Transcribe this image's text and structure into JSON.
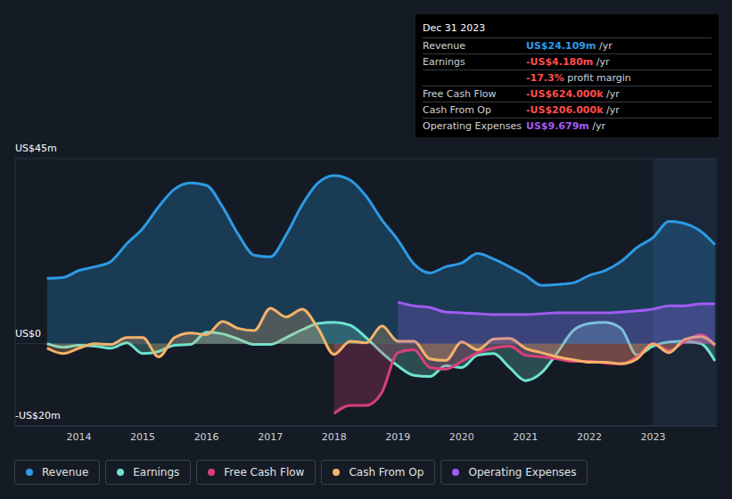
{
  "chart_data": {
    "type": "area",
    "grid": true,
    "x": [
      2013.5,
      2013.75,
      2014,
      2014.25,
      2014.5,
      2014.75,
      2015,
      2015.25,
      2015.5,
      2015.75,
      2016,
      2016.25,
      2016.5,
      2016.75,
      2017,
      2017.25,
      2017.5,
      2017.75,
      2018,
      2018.25,
      2018.5,
      2018.75,
      2019,
      2019.25,
      2019.5,
      2019.75,
      2020,
      2020.25,
      2020.5,
      2020.75,
      2021,
      2021.25,
      2021.5,
      2021.75,
      2022,
      2022.25,
      2022.5,
      2022.75,
      2023,
      2023.25,
      2023.5,
      2023.75,
      2023.97
    ],
    "xlim": [
      2013,
      2024
    ],
    "xticks": [
      2014,
      2015,
      2016,
      2017,
      2018,
      2019,
      2020,
      2021,
      2022,
      2023
    ],
    "ylim": [
      -20,
      45
    ],
    "yticks": [
      {
        "value": 45,
        "label": "US$45m"
      },
      {
        "value": 0,
        "label": "US$0"
      },
      {
        "value": -20,
        "label": "-US$20m"
      }
    ],
    "shaded_x": [
      2023,
      2024
    ],
    "series": [
      {
        "name": "Revenue",
        "color": "#2d9ae5",
        "values": [
          15.9,
          16.1,
          17.8,
          18.7,
          20,
          24.3,
          28,
          33.3,
          37.6,
          39.1,
          38.5,
          33.3,
          26.5,
          21.5,
          21.1,
          26.5,
          33.8,
          39.1,
          40.9,
          39.8,
          35.9,
          30.1,
          25.2,
          19.4,
          17.2,
          18.7,
          19.6,
          21.9,
          20.6,
          18.7,
          16.6,
          14.2,
          14.4,
          14.8,
          16.6,
          17.8,
          20,
          23.4,
          25.8,
          29.7,
          29.2,
          27.3,
          24.1
        ]
      },
      {
        "name": "Earnings",
        "color": "#6fe3cf",
        "values": [
          0,
          -0.9,
          -0.4,
          -0.6,
          -1.1,
          0.2,
          -2.4,
          -1.9,
          -0.4,
          -0.2,
          2.8,
          2.4,
          1.1,
          -0.2,
          -0.2,
          1.5,
          3.4,
          4.9,
          5.2,
          4.5,
          1.5,
          -2.2,
          -5.4,
          -7.7,
          -8,
          -5.4,
          -5.8,
          -2.8,
          -2.4,
          -5.8,
          -9,
          -7.1,
          -2.2,
          3.2,
          4.9,
          5.2,
          3.7,
          -2.8,
          -0.6,
          0.4,
          0.6,
          0,
          -4.2
        ]
      },
      {
        "name": "Free Cash Flow",
        "color": "#d8407a",
        "values": [
          null,
          null,
          null,
          null,
          null,
          null,
          null,
          null,
          null,
          null,
          null,
          null,
          null,
          null,
          null,
          null,
          null,
          null,
          -17,
          -15,
          -15,
          -11.8,
          -2.2,
          -1.5,
          -5.8,
          -6.2,
          -4.3,
          -2.2,
          -1.1,
          -0.6,
          -2.8,
          -3.2,
          -3.7,
          -4.3,
          -4.3,
          -4.7,
          -4.9,
          -3.2,
          0,
          -1.7,
          0.6,
          2.2,
          -0.6
        ]
      },
      {
        "name": "Cash From Op",
        "color": "#f5b26b",
        "values": [
          -1.1,
          -2.4,
          -1.1,
          0,
          -0.2,
          1.5,
          1.5,
          -3.2,
          1.5,
          2.6,
          2.2,
          5.4,
          3.7,
          3.2,
          8.6,
          6.5,
          8.4,
          3.7,
          -2.6,
          0.6,
          0.2,
          4.3,
          0.6,
          0.6,
          -3.7,
          -4.1,
          0.4,
          -1.5,
          1.1,
          1.3,
          -1.1,
          -2.2,
          -3.2,
          -3.9,
          -4.5,
          -4.5,
          -4.9,
          -3.7,
          0,
          -2.2,
          1.1,
          1.7,
          -0.2
        ]
      },
      {
        "name": "Operating Expenses",
        "color": "#a05cf0",
        "values": [
          null,
          null,
          null,
          null,
          null,
          null,
          null,
          null,
          null,
          null,
          null,
          null,
          null,
          null,
          null,
          null,
          null,
          null,
          null,
          null,
          null,
          null,
          10.1,
          9.2,
          8.8,
          7.7,
          7.5,
          7.3,
          7.1,
          7.1,
          7.1,
          7.3,
          7.5,
          7.5,
          7.5,
          7.5,
          7.7,
          8.0,
          8.4,
          9.2,
          9.2,
          9.7,
          9.7
        ]
      }
    ],
    "annotations": {
      "title": "Dec 31 2023",
      "rows": [
        {
          "label": "Revenue",
          "value": "US$24.109m",
          "unit": "/yr",
          "color": "#2d9ae5"
        },
        {
          "label": "Earnings",
          "value": "-US$4.180m",
          "unit": "/yr",
          "color": "#ff4d4d"
        },
        {
          "value": "-17.3%",
          "unit": "profit margin",
          "color": "#ff4d4d"
        },
        {
          "label": "Free Cash Flow",
          "value": "-US$624.000k",
          "unit": "/yr",
          "color": "#ff4d4d"
        },
        {
          "label": "Cash From Op",
          "value": "-US$206.000k",
          "unit": "/yr",
          "color": "#ff4d4d"
        },
        {
          "label": "Operating Expenses",
          "value": "US$9.679m",
          "unit": "/yr",
          "color": "#a05cf0"
        }
      ]
    }
  }
}
